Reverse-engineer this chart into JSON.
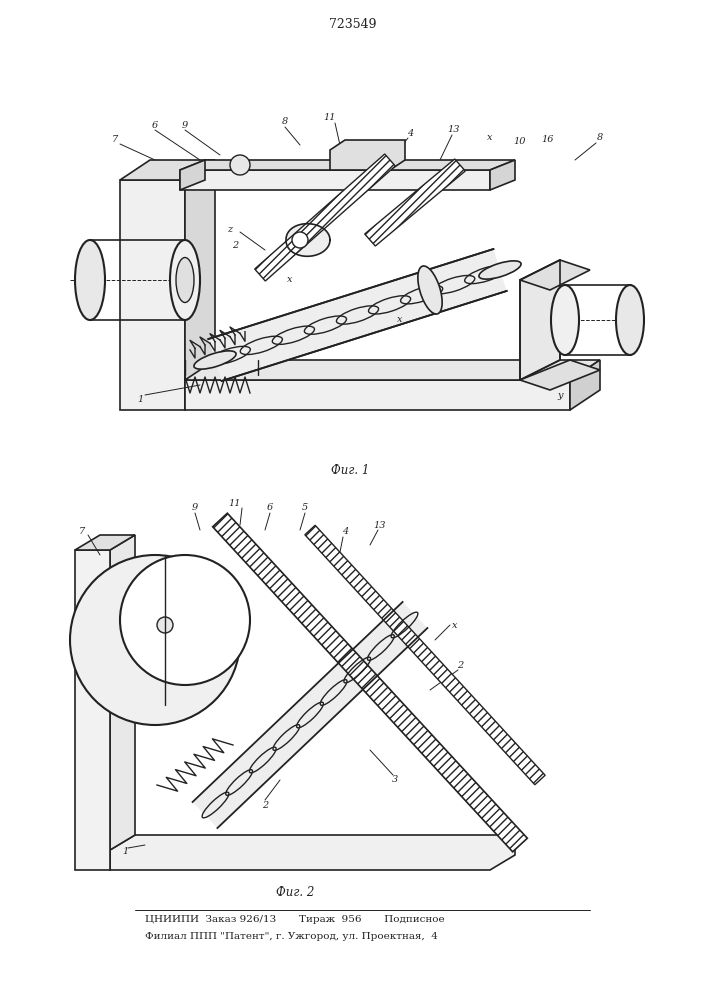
{
  "patent_number": "723549",
  "fig1_caption": "Фиг. 1",
  "fig2_caption": "Фиг. 2",
  "footer_line1": "ЦНИИПИ  Заказ 926/13       Тираж  956       Подписное",
  "footer_line2": "Филиал ППП \"Патент\", г. Ужгород, ул. Проектная,  4",
  "bg_color": "#ffffff",
  "line_color": "#222222"
}
